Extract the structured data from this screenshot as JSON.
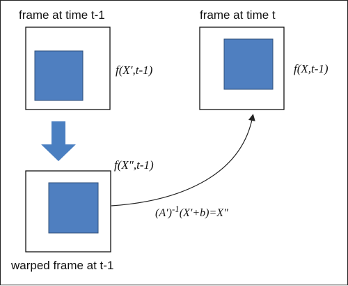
{
  "colors": {
    "square_fill": "#4f7fc0",
    "square_stroke": "#2f4f7a",
    "frame_stroke": "#111111",
    "arrow_fill": "#4a7fc1",
    "curve_stroke": "#222222",
    "text": "#111111"
  },
  "frames": {
    "previous": {
      "label": "frame at time t-1",
      "func_main": "f",
      "func_args": "(X′,t-1)"
    },
    "current": {
      "label": "frame at time t",
      "func_main": "f",
      "func_args": "(X,t-1)"
    },
    "warped": {
      "label": "warped frame at t-1",
      "func_main": "f",
      "func_args": "(X″,t-1)"
    }
  },
  "transform": {
    "base": "(A′)",
    "exponent": "-1",
    "rest": "(X′+b)=X″"
  },
  "icons": {
    "down_arrow": "down-arrow-icon",
    "curve_arrow": "curved-arrow-icon"
  }
}
